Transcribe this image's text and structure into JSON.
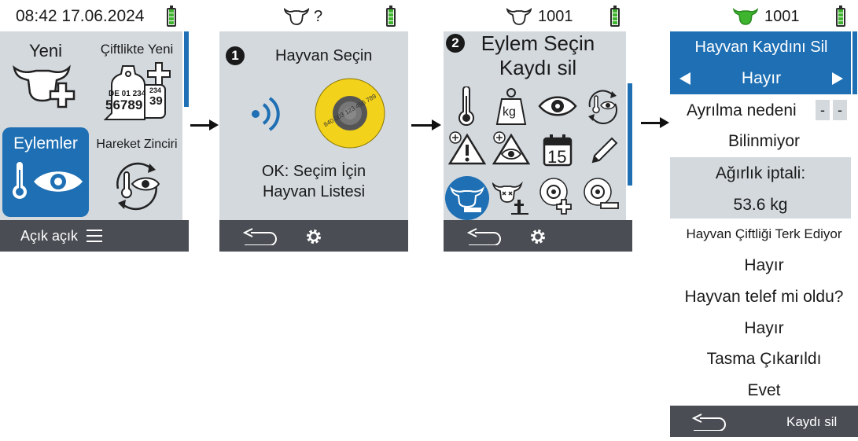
{
  "screen1": {
    "status_datetime": "08:42 17.06.2024",
    "tiles": {
      "new_label": "Yeni",
      "farm_new_label": "Çiftlikte Yeni",
      "tag_line1": "DE 01 234",
      "tag_line2": "56789",
      "tag_back1": "234",
      "tag_back2": "39",
      "actions_label": "Eylemler",
      "movement_chain_label": "Hareket Zinciri"
    },
    "footer_label": "Açık açık",
    "menu_icon": "hamburger-icon"
  },
  "screen2": {
    "status_id": "?",
    "step_number": "1",
    "title": "Hayvan Seçin",
    "tag_number_text": "840 003 123 456 789",
    "hint_line1": "OK: Seçim İçin",
    "hint_line2": "Hayvan Listesi",
    "footer_icons": [
      "back-icon",
      "gear-icon"
    ]
  },
  "screen3": {
    "status_id": "1001",
    "step_number": "2",
    "title_line1": "Eylem Seçin",
    "title_line2": "Kaydı sil",
    "icons": [
      "thermometer-icon",
      "scale-kg-icon",
      "eye-icon",
      "thermometer-cycle-icon",
      "warning-add-icon",
      "eye-warning-icon",
      "calendar-icon",
      "pencil-icon",
      "delete-record-icon",
      "dead-animal-icon",
      "tag-add-icon",
      "tag-remove-icon"
    ],
    "scale_label": "kg",
    "calendar_day": "15",
    "footer_icons": [
      "back-icon",
      "gear-icon"
    ]
  },
  "screen4": {
    "status_id": "1001",
    "header_title": "Hayvan Kaydını Sil",
    "selector_value": "Hayır",
    "reason_label": "Ayrılma nedeni",
    "reason_box1": "-",
    "reason_box2": "-",
    "reason_value": "Bilinmiyor",
    "weight_label": "Ağırlık iptali:",
    "weight_value": "53.6 kg",
    "leaving_label": "Hayvan Çiftliği Terk Ediyor",
    "leaving_value": "Hayır",
    "died_label": "Hayvan telef mi oldu?",
    "died_value": "Hayır",
    "collar_label": "Tasma Çıkarıldı",
    "collar_value": "Evet",
    "footer_action": "Kaydı sil"
  },
  "colors": {
    "accent_blue": "#1e6fb3",
    "screen_gray": "#d4d9de",
    "footer_dark": "#4a4d54",
    "battery_green": "#3fb52f",
    "cow_green": "#3fb52f",
    "tag_yellow": "#f3d21b"
  }
}
